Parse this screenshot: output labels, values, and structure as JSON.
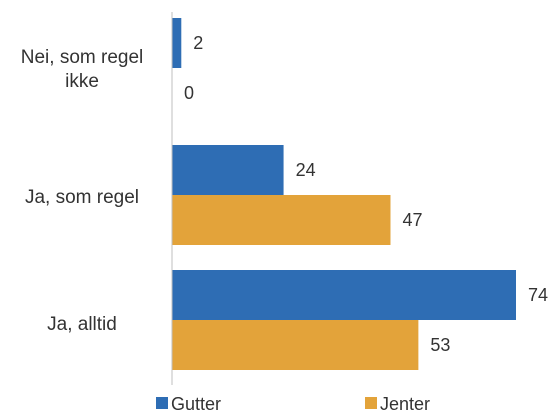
{
  "chart_data": {
    "type": "bar",
    "orientation": "horizontal",
    "categories": [
      [
        "Nei, som regel",
        "ikke"
      ],
      [
        "Ja, som regel"
      ],
      [
        "Ja, alltid"
      ]
    ],
    "series": [
      {
        "name": "Gutter",
        "values": [
          2,
          24,
          74
        ],
        "color": "#2e6db4"
      },
      {
        "name": "Jenter",
        "values": [
          0,
          47,
          53
        ],
        "color": "#e3a33a"
      }
    ],
    "xlim": [
      0,
      75
    ],
    "grid": false,
    "legend_position": "bottom"
  }
}
